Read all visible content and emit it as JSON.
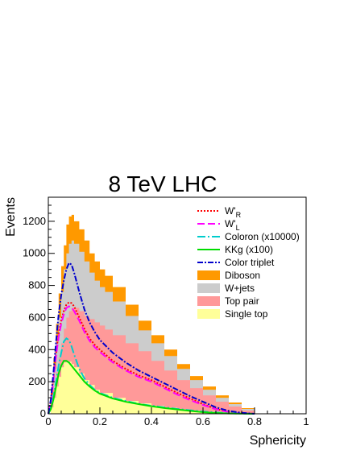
{
  "chart_data": {
    "type": "area",
    "title": "8 TeV LHC",
    "xlabel": "Sphericity",
    "ylabel": "Events",
    "xlim": [
      0,
      1
    ],
    "ylim": [
      0,
      1350
    ],
    "x_ticks": [
      "0",
      "0.2",
      "0.4",
      "0.6",
      "0.8",
      "1"
    ],
    "y_ticks": [
      "0",
      "200",
      "400",
      "600",
      "800",
      "1000",
      "1200"
    ],
    "grid": false,
    "legend_position": "top-right",
    "stacked_backgrounds": [
      {
        "name": "Single top",
        "color": "#ffff99",
        "points": [
          [
            0,
            0
          ],
          [
            0.01,
            40
          ],
          [
            0.02,
            100
          ],
          [
            0.03,
            170
          ],
          [
            0.04,
            230
          ],
          [
            0.05,
            290
          ],
          [
            0.06,
            320
          ],
          [
            0.07,
            330
          ],
          [
            0.08,
            325
          ],
          [
            0.09,
            310
          ],
          [
            0.1,
            290
          ],
          [
            0.12,
            250
          ],
          [
            0.14,
            210
          ],
          [
            0.16,
            180
          ],
          [
            0.18,
            150
          ],
          [
            0.2,
            130
          ],
          [
            0.25,
            100
          ],
          [
            0.3,
            80
          ],
          [
            0.35,
            65
          ],
          [
            0.4,
            50
          ],
          [
            0.45,
            38
          ],
          [
            0.5,
            28
          ],
          [
            0.55,
            20
          ],
          [
            0.6,
            12
          ],
          [
            0.65,
            8
          ],
          [
            0.7,
            4
          ],
          [
            0.75,
            2
          ],
          [
            0.8,
            0
          ]
        ]
      },
      {
        "name": "Top pair",
        "color": "#ff9999",
        "points": [
          [
            0,
            0
          ],
          [
            0.01,
            60
          ],
          [
            0.02,
            160
          ],
          [
            0.03,
            260
          ],
          [
            0.04,
            350
          ],
          [
            0.05,
            440
          ],
          [
            0.06,
            530
          ],
          [
            0.07,
            600
          ],
          [
            0.08,
            640
          ],
          [
            0.09,
            660
          ],
          [
            0.1,
            660
          ],
          [
            0.12,
            640
          ],
          [
            0.14,
            610
          ],
          [
            0.16,
            590
          ],
          [
            0.18,
            570
          ],
          [
            0.2,
            550
          ],
          [
            0.22,
            525
          ],
          [
            0.25,
            490
          ],
          [
            0.3,
            440
          ],
          [
            0.35,
            390
          ],
          [
            0.4,
            330
          ],
          [
            0.45,
            270
          ],
          [
            0.5,
            210
          ],
          [
            0.55,
            160
          ],
          [
            0.6,
            115
          ],
          [
            0.65,
            75
          ],
          [
            0.7,
            45
          ],
          [
            0.75,
            20
          ],
          [
            0.8,
            0
          ]
        ]
      },
      {
        "name": "W+jets",
        "color": "#cccccc",
        "points": [
          [
            0,
            0
          ],
          [
            0.01,
            120
          ],
          [
            0.02,
            280
          ],
          [
            0.03,
            450
          ],
          [
            0.04,
            600
          ],
          [
            0.05,
            760
          ],
          [
            0.06,
            900
          ],
          [
            0.07,
            1000
          ],
          [
            0.08,
            1060
          ],
          [
            0.09,
            1080
          ],
          [
            0.1,
            1060
          ],
          [
            0.12,
            1010
          ],
          [
            0.14,
            950
          ],
          [
            0.16,
            880
          ],
          [
            0.18,
            830
          ],
          [
            0.2,
            790
          ],
          [
            0.22,
            760
          ],
          [
            0.25,
            700
          ],
          [
            0.3,
            610
          ],
          [
            0.35,
            520
          ],
          [
            0.4,
            440
          ],
          [
            0.45,
            360
          ],
          [
            0.5,
            280
          ],
          [
            0.55,
            210
          ],
          [
            0.6,
            150
          ],
          [
            0.65,
            100
          ],
          [
            0.7,
            60
          ],
          [
            0.75,
            30
          ],
          [
            0.8,
            0
          ]
        ]
      },
      {
        "name": "Diboson",
        "color": "#ff9900",
        "points": [
          [
            0,
            0
          ],
          [
            0.01,
            150
          ],
          [
            0.02,
            350
          ],
          [
            0.03,
            560
          ],
          [
            0.04,
            750
          ],
          [
            0.05,
            920
          ],
          [
            0.06,
            1050
          ],
          [
            0.07,
            1180
          ],
          [
            0.08,
            1230
          ],
          [
            0.09,
            1240
          ],
          [
            0.1,
            1200
          ],
          [
            0.12,
            1150
          ],
          [
            0.14,
            1080
          ],
          [
            0.16,
            1000
          ],
          [
            0.18,
            950
          ],
          [
            0.2,
            900
          ],
          [
            0.22,
            860
          ],
          [
            0.25,
            790
          ],
          [
            0.3,
            680
          ],
          [
            0.35,
            580
          ],
          [
            0.4,
            490
          ],
          [
            0.45,
            400
          ],
          [
            0.5,
            310
          ],
          [
            0.55,
            235
          ],
          [
            0.6,
            170
          ],
          [
            0.65,
            115
          ],
          [
            0.7,
            70
          ],
          [
            0.75,
            35
          ],
          [
            0.8,
            0
          ]
        ]
      }
    ],
    "signals": [
      {
        "name": "W'_R",
        "color": "#ff0000",
        "dash": "2,2",
        "points": [
          [
            0,
            0
          ],
          [
            0.01,
            80
          ],
          [
            0.02,
            230
          ],
          [
            0.03,
            380
          ],
          [
            0.04,
            500
          ],
          [
            0.05,
            580
          ],
          [
            0.06,
            640
          ],
          [
            0.07,
            680
          ],
          [
            0.08,
            695
          ],
          [
            0.09,
            690
          ],
          [
            0.1,
            670
          ],
          [
            0.12,
            600
          ],
          [
            0.14,
            530
          ],
          [
            0.16,
            470
          ],
          [
            0.18,
            430
          ],
          [
            0.2,
            400
          ],
          [
            0.25,
            330
          ],
          [
            0.3,
            280
          ],
          [
            0.35,
            240
          ],
          [
            0.4,
            210
          ],
          [
            0.45,
            170
          ],
          [
            0.5,
            130
          ],
          [
            0.55,
            95
          ],
          [
            0.6,
            60
          ],
          [
            0.65,
            30
          ],
          [
            0.7,
            12
          ],
          [
            0.75,
            4
          ],
          [
            0.8,
            0
          ]
        ]
      },
      {
        "name": "W'_L",
        "color": "#ff00ff",
        "dash": "9,4",
        "points": [
          [
            0,
            0
          ],
          [
            0.01,
            70
          ],
          [
            0.02,
            210
          ],
          [
            0.03,
            360
          ],
          [
            0.04,
            480
          ],
          [
            0.05,
            560
          ],
          [
            0.06,
            620
          ],
          [
            0.07,
            660
          ],
          [
            0.08,
            670
          ],
          [
            0.09,
            665
          ],
          [
            0.1,
            640
          ],
          [
            0.12,
            580
          ],
          [
            0.14,
            510
          ],
          [
            0.16,
            455
          ],
          [
            0.18,
            415
          ],
          [
            0.2,
            385
          ],
          [
            0.25,
            320
          ],
          [
            0.3,
            270
          ],
          [
            0.35,
            230
          ],
          [
            0.4,
            200
          ],
          [
            0.45,
            160
          ],
          [
            0.5,
            120
          ],
          [
            0.55,
            85
          ],
          [
            0.6,
            55
          ],
          [
            0.65,
            28
          ],
          [
            0.7,
            10
          ],
          [
            0.75,
            3
          ],
          [
            0.8,
            0
          ]
        ]
      },
      {
        "name": "Coloron (x10000)",
        "color": "#00cccc",
        "dash": "10,3,2,3",
        "points": [
          [
            0,
            0
          ],
          [
            0.01,
            40
          ],
          [
            0.02,
            110
          ],
          [
            0.03,
            200
          ],
          [
            0.04,
            300
          ],
          [
            0.05,
            380
          ],
          [
            0.06,
            450
          ],
          [
            0.07,
            470
          ],
          [
            0.08,
            460
          ],
          [
            0.09,
            420
          ],
          [
            0.1,
            370
          ],
          [
            0.12,
            280
          ],
          [
            0.14,
            220
          ],
          [
            0.16,
            180
          ],
          [
            0.18,
            150
          ],
          [
            0.2,
            130
          ],
          [
            0.25,
            100
          ],
          [
            0.3,
            80
          ],
          [
            0.35,
            62
          ],
          [
            0.4,
            50
          ],
          [
            0.45,
            40
          ],
          [
            0.5,
            30
          ],
          [
            0.55,
            22
          ],
          [
            0.6,
            14
          ],
          [
            0.65,
            8
          ],
          [
            0.7,
            3
          ],
          [
            0.75,
            1
          ],
          [
            0.8,
            0
          ]
        ]
      },
      {
        "name": "KKg (x100)",
        "color": "#00dd00",
        "dash": "",
        "points": [
          [
            0,
            0
          ],
          [
            0.01,
            30
          ],
          [
            0.02,
            90
          ],
          [
            0.03,
            170
          ],
          [
            0.04,
            250
          ],
          [
            0.05,
            300
          ],
          [
            0.06,
            330
          ],
          [
            0.07,
            330
          ],
          [
            0.08,
            320
          ],
          [
            0.09,
            300
          ],
          [
            0.1,
            280
          ],
          [
            0.12,
            240
          ],
          [
            0.14,
            200
          ],
          [
            0.16,
            170
          ],
          [
            0.18,
            145
          ],
          [
            0.2,
            125
          ],
          [
            0.25,
            95
          ],
          [
            0.3,
            75
          ],
          [
            0.35,
            60
          ],
          [
            0.4,
            47
          ],
          [
            0.45,
            36
          ],
          [
            0.5,
            27
          ],
          [
            0.55,
            18
          ],
          [
            0.6,
            10
          ],
          [
            0.65,
            5
          ],
          [
            0.7,
            2
          ],
          [
            0.75,
            1
          ],
          [
            0.8,
            0
          ]
        ]
      },
      {
        "name": "Color triplet",
        "color": "#0000cc",
        "dash": "7,2,2,2",
        "points": [
          [
            0,
            0
          ],
          [
            0.01,
            90
          ],
          [
            0.02,
            260
          ],
          [
            0.03,
            450
          ],
          [
            0.04,
            620
          ],
          [
            0.05,
            740
          ],
          [
            0.06,
            830
          ],
          [
            0.07,
            900
          ],
          [
            0.08,
            940
          ],
          [
            0.09,
            930
          ],
          [
            0.1,
            880
          ],
          [
            0.12,
            760
          ],
          [
            0.14,
            650
          ],
          [
            0.16,
            570
          ],
          [
            0.18,
            510
          ],
          [
            0.2,
            460
          ],
          [
            0.25,
            380
          ],
          [
            0.3,
            320
          ],
          [
            0.35,
            270
          ],
          [
            0.4,
            230
          ],
          [
            0.45,
            190
          ],
          [
            0.5,
            150
          ],
          [
            0.55,
            110
          ],
          [
            0.6,
            75
          ],
          [
            0.65,
            40
          ],
          [
            0.7,
            18
          ],
          [
            0.75,
            6
          ],
          [
            0.8,
            0
          ]
        ]
      }
    ],
    "legend_entries": [
      {
        "label": "W'",
        "sub": "R",
        "kind": "line",
        "ref": "W'_R"
      },
      {
        "label": "W'",
        "sub": "L",
        "kind": "line",
        "ref": "W'_L"
      },
      {
        "label": "Coloron (x10000)",
        "sub": "",
        "kind": "line",
        "ref": "Coloron (x10000)"
      },
      {
        "label": "KKg (x100)",
        "sub": "",
        "kind": "line",
        "ref": "KKg (x100)"
      },
      {
        "label": "Color triplet",
        "sub": "",
        "kind": "line",
        "ref": "Color triplet"
      },
      {
        "label": "Diboson",
        "sub": "",
        "kind": "box",
        "ref": "Diboson"
      },
      {
        "label": "W+jets",
        "sub": "",
        "kind": "box",
        "ref": "W+jets"
      },
      {
        "label": "Top pair",
        "sub": "",
        "kind": "box",
        "ref": "Top pair"
      },
      {
        "label": "Single top",
        "sub": "",
        "kind": "box",
        "ref": "Single top"
      }
    ]
  }
}
